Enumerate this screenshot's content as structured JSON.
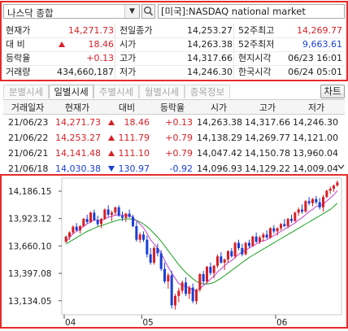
{
  "search": {
    "selected": "나스닥 종합",
    "market_label": "[미국]:NASDAQ national market"
  },
  "quote": {
    "rows": [
      {
        "l1": "현재가",
        "v1": "14,271.73",
        "l2": "전일종가",
        "v2": "14,253.27",
        "l3": "52주최고",
        "v3": "14,269.77"
      },
      {
        "l1": "대 비",
        "v1": "18.46",
        "l2": "시가",
        "v2": "14,263.38",
        "l3": "52주최저",
        "v3": "9,663.61"
      },
      {
        "l1": "등락율",
        "v1": "+0.13",
        "l2": "고가",
        "v2": "14,317.66",
        "l3": "현지시각",
        "v3": "06/23 16:01"
      },
      {
        "l1": "거래량",
        "v1": "434,660,187",
        "l2": "저가",
        "v2": "14,246.30",
        "l3": "한국시각",
        "v3": "06/24 05:01"
      }
    ]
  },
  "tabs": [
    "분별시세",
    "일별시세",
    "주별시세",
    "월별시세",
    "종목정보"
  ],
  "active_tab": "일별시세",
  "chart_button": "차트",
  "daily_table": {
    "headers": [
      "거래일자",
      "현재가",
      "대비",
      "등락율",
      "시가",
      "고가",
      "저가"
    ],
    "rows": [
      {
        "date": "21/06/23",
        "close": "14,271.73",
        "dir": "up",
        "change": "18.46",
        "rate": "+0.13",
        "open": "14,263.38",
        "high": "14,317.66",
        "low": "14,246.30"
      },
      {
        "date": "21/06/22",
        "close": "14,253.27",
        "dir": "up",
        "change": "111.79",
        "rate": "+0.79",
        "open": "14,138.29",
        "high": "14,269.77",
        "low": "14,121.00"
      },
      {
        "date": "21/06/21",
        "close": "14,141.48",
        "dir": "up",
        "change": "111.10",
        "rate": "+0.79",
        "open": "14,047.42",
        "high": "14,150.78",
        "low": "13,960.04"
      },
      {
        "date": "21/06/18",
        "close": "14,030.38",
        "dir": "down",
        "change": "130.97",
        "rate": "-0.92",
        "open": "14,096.93",
        "high": "14,129.22",
        "low": "14,009.04"
      }
    ]
  },
  "colors": {
    "up": "#d81f26",
    "down": "#1a3fd6",
    "ma_short": "#c040d0",
    "ma_long": "#1aa020",
    "frame": "#e52b2b"
  },
  "chart_data": {
    "type": "candlestick",
    "y_ticks": [
      "14,186.15",
      "13,923.12",
      "13,660.10",
      "13,397.08",
      "13,134.05"
    ],
    "y_tick_values": [
      14186.15,
      13923.12,
      13660.1,
      13397.08,
      13134.05
    ],
    "x_labels": [
      "04",
      "05",
      "06"
    ],
    "x_label_index": [
      0,
      22,
      60
    ],
    "ylim": [
      13000,
      14280
    ],
    "candles": [
      [
        13700,
        13760,
        13690,
        13750
      ],
      [
        13745,
        13800,
        13720,
        13790
      ],
      [
        13790,
        13860,
        13770,
        13845
      ],
      [
        13845,
        13880,
        13800,
        13810
      ],
      [
        13810,
        13860,
        13780,
        13850
      ],
      [
        13850,
        13930,
        13840,
        13920
      ],
      [
        13920,
        13960,
        13870,
        13890
      ],
      [
        13890,
        13990,
        13880,
        13980
      ],
      [
        13980,
        14010,
        13900,
        13910
      ],
      [
        13910,
        13950,
        13850,
        13870
      ],
      [
        13870,
        13930,
        13830,
        13920
      ],
      [
        13920,
        14020,
        13910,
        14010
      ],
      [
        14010,
        14050,
        13940,
        13960
      ],
      [
        13960,
        14000,
        13900,
        13980
      ],
      [
        13980,
        14040,
        13950,
        14030
      ],
      [
        14030,
        14050,
        13940,
        13950
      ],
      [
        13950,
        13990,
        13900,
        13930
      ],
      [
        13930,
        13980,
        13890,
        13970
      ],
      [
        13970,
        14010,
        13930,
        13940
      ],
      [
        13940,
        13960,
        13840,
        13850
      ],
      [
        13850,
        13890,
        13700,
        13720
      ],
      [
        13720,
        13790,
        13690,
        13770
      ],
      [
        13770,
        13800,
        13700,
        13720
      ],
      [
        13720,
        13760,
        13550,
        13580
      ],
      [
        13580,
        13640,
        13480,
        13500
      ],
      [
        13500,
        13660,
        13480,
        13640
      ],
      [
        13640,
        13680,
        13560,
        13590
      ],
      [
        13590,
        13620,
        13420,
        13440
      ],
      [
        13440,
        13500,
        13300,
        13320
      ],
      [
        13320,
        13400,
        13250,
        13380
      ],
      [
        13380,
        13420,
        13060,
        13090
      ],
      [
        13090,
        13200,
        13050,
        13180
      ],
      [
        13180,
        13260,
        13120,
        13230
      ],
      [
        13230,
        13330,
        13200,
        13310
      ],
      [
        13310,
        13360,
        13180,
        13200
      ],
      [
        13200,
        13280,
        13150,
        13260
      ],
      [
        13260,
        13300,
        13110,
        13130
      ],
      [
        13130,
        13250,
        13100,
        13240
      ],
      [
        13240,
        13400,
        13220,
        13390
      ],
      [
        13390,
        13420,
        13300,
        13320
      ],
      [
        13320,
        13470,
        13300,
        13460
      ],
      [
        13460,
        13500,
        13380,
        13400
      ],
      [
        13400,
        13480,
        13350,
        13470
      ],
      [
        13470,
        13580,
        13450,
        13560
      ],
      [
        13560,
        13600,
        13490,
        13500
      ],
      [
        13500,
        13540,
        13430,
        13530
      ],
      [
        13530,
        13620,
        13500,
        13610
      ],
      [
        13610,
        13640,
        13550,
        13560
      ],
      [
        13560,
        13700,
        13540,
        13690
      ],
      [
        13690,
        13720,
        13620,
        13640
      ],
      [
        13640,
        13680,
        13560,
        13580
      ],
      [
        13580,
        13700,
        13570,
        13690
      ],
      [
        13690,
        13720,
        13640,
        13660
      ],
      [
        13660,
        13760,
        13650,
        13750
      ],
      [
        13750,
        13790,
        13690,
        13700
      ],
      [
        13700,
        13760,
        13680,
        13740
      ],
      [
        13740,
        13790,
        13700,
        13770
      ],
      [
        13770,
        13810,
        13730,
        13740
      ],
      [
        13740,
        13840,
        13730,
        13830
      ],
      [
        13830,
        13860,
        13780,
        13800
      ],
      [
        13800,
        13840,
        13760,
        13830
      ],
      [
        13830,
        13880,
        13810,
        13870
      ],
      [
        13870,
        13920,
        13840,
        13850
      ],
      [
        13850,
        13930,
        13830,
        13920
      ],
      [
        13920,
        13960,
        13880,
        13900
      ],
      [
        13900,
        13990,
        13890,
        13980
      ],
      [
        13980,
        14030,
        13950,
        14010
      ],
      [
        14010,
        14060,
        13970,
        13990
      ],
      [
        13990,
        14100,
        13980,
        14090
      ],
      [
        14090,
        14130,
        14050,
        14070
      ],
      [
        14070,
        14120,
        14040,
        14110
      ],
      [
        14110,
        14140,
        14060,
        14080
      ],
      [
        14080,
        14120,
        14010,
        14030
      ],
      [
        14030,
        14150,
        13990,
        14130
      ],
      [
        14130,
        14200,
        14120,
        14190
      ],
      [
        14190,
        14230,
        14160,
        14210
      ],
      [
        14210,
        14250,
        14180,
        14240
      ],
      [
        14240,
        14290,
        14230,
        14270
      ]
    ],
    "ma_short": [
      13700,
      13740,
      13780,
      13800,
      13820,
      13850,
      13870,
      13890,
      13910,
      13905,
      13900,
      13920,
      13935,
      13945,
      13955,
      13960,
      13955,
      13955,
      13950,
      13935,
      13900,
      13870,
      13835,
      13780,
      13720,
      13680,
      13640,
      13590,
      13520,
      13460,
      13400,
      13350,
      13300,
      13280,
      13270,
      13260,
      13240,
      13230,
      13250,
      13280,
      13310,
      13340,
      13370,
      13410,
      13440,
      13470,
      13500,
      13520,
      13550,
      13580,
      13600,
      13620,
      13640,
      13660,
      13680,
      13700,
      13710,
      13720,
      13740,
      13760,
      13780,
      13800,
      13820,
      13840,
      13860,
      13880,
      13910,
      13930,
      13960,
      13990,
      14010,
      14040,
      14050,
      14060,
      14090,
      14120,
      14150,
      14190
    ],
    "ma_long": [
      13680,
      13700,
      13720,
      13740,
      13760,
      13780,
      13800,
      13815,
      13830,
      13845,
      13855,
      13865,
      13880,
      13890,
      13900,
      13910,
      13915,
      13920,
      13920,
      13915,
      13905,
      13890,
      13870,
      13845,
      13815,
      13780,
      13745,
      13705,
      13660,
      13615,
      13570,
      13525,
      13480,
      13440,
      13405,
      13375,
      13345,
      13320,
      13305,
      13295,
      13295,
      13300,
      13310,
      13330,
      13350,
      13375,
      13400,
      13425,
      13450,
      13475,
      13500,
      13525,
      13550,
      13570,
      13590,
      13610,
      13630,
      13650,
      13670,
      13690,
      13710,
      13730,
      13750,
      13770,
      13790,
      13810,
      13830,
      13850,
      13870,
      13890,
      13910,
      13930,
      13950,
      13970,
      13990,
      14010,
      14040,
      14070
    ]
  }
}
